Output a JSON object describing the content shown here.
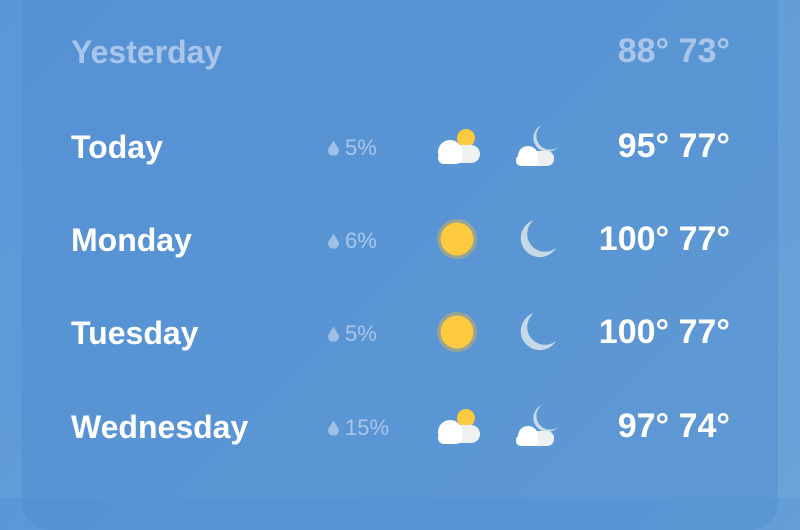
{
  "forecast": [
    {
      "day": "Yesterday",
      "precip": "",
      "day_icon": "",
      "night_icon": "",
      "high": "88°",
      "low": "73°",
      "past": true
    },
    {
      "day": "Today",
      "precip": "5%",
      "day_icon": "partly-cloudy-day-icon",
      "night_icon": "partly-cloudy-night-icon",
      "high": "95°",
      "low": "77°"
    },
    {
      "day": "Monday",
      "precip": "6%",
      "day_icon": "sun-icon",
      "night_icon": "moon-icon",
      "high": "100°",
      "low": "77°"
    },
    {
      "day": "Tuesday",
      "precip": "5%",
      "day_icon": "sun-icon",
      "night_icon": "moon-icon",
      "high": "100°",
      "low": "77°"
    },
    {
      "day": "Wednesday",
      "precip": "15%",
      "day_icon": "partly-cloudy-day-icon",
      "night_icon": "partly-cloudy-night-icon",
      "high": "97°",
      "low": "74°"
    }
  ],
  "colors": {
    "sun": "#fdc93f",
    "moon": "#c5d9e6",
    "cloud": "#ffffff",
    "precip": "#a9c6ea"
  }
}
